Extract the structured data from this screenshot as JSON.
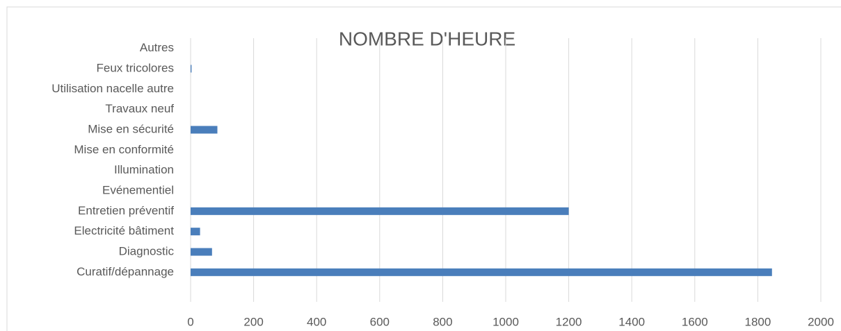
{
  "chart_data": {
    "type": "bar",
    "orientation": "horizontal",
    "title": "NOMBRE D'HEURE",
    "categories": [
      "Curatif/dépannage",
      "Diagnostic",
      "Electricité bâtiment",
      "Entretien préventif",
      "Evénementiel",
      "Illumination",
      "Mise en conformité",
      "Mise en sécurité",
      "Travaux neuf",
      "Utilisation nacelle autre",
      "Feux tricolores",
      "Autres"
    ],
    "values": [
      1845,
      68,
      30,
      1200,
      0,
      0,
      0,
      85,
      0,
      0,
      3,
      0
    ],
    "color": "#4a7ebb",
    "xlim": [
      0,
      2000
    ],
    "xticks": [
      0,
      200,
      400,
      600,
      800,
      1000,
      1200,
      1400,
      1600,
      1800,
      2000
    ],
    "grid": true
  }
}
